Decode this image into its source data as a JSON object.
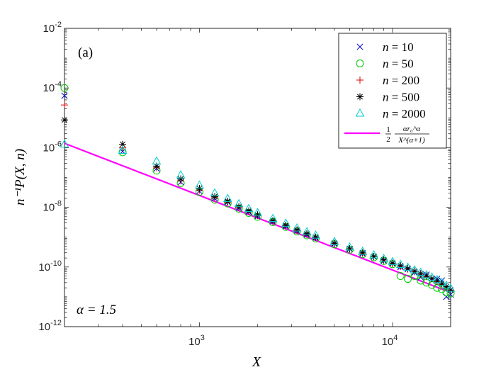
{
  "chart_data": {
    "type": "scatter",
    "panel_label": "(a)",
    "annotation": "α = 1.5",
    "xlabel": "X",
    "ylabel": "n⁻¹P(X, n)",
    "xscale": "log",
    "yscale": "log",
    "xlim": [
      200,
      20000
    ],
    "ylim": [
      1e-12,
      0.01
    ],
    "x_ticks": [
      {
        "value": 1000,
        "base": "10",
        "exp": "3"
      },
      {
        "value": 10000,
        "base": "10",
        "exp": "4"
      }
    ],
    "y_ticks": [
      {
        "value": 0.01,
        "base": "10",
        "exp": "-2"
      },
      {
        "value": 0.0001,
        "base": "10",
        "exp": "-4"
      },
      {
        "value": 1e-06,
        "base": "10",
        "exp": "-6"
      },
      {
        "value": 1e-08,
        "base": "10",
        "exp": "-8"
      },
      {
        "value": 1e-10,
        "base": "10",
        "exp": "-10"
      },
      {
        "value": 1e-12,
        "base": "10",
        "exp": "-12"
      }
    ],
    "series": [
      {
        "name": "n = 10",
        "n": "10",
        "marker": "x",
        "color": "#0000CC",
        "points": [
          [
            200,
            5.5e-05
          ],
          [
            400,
            7.5e-07
          ],
          [
            600,
            2e-07
          ],
          [
            800,
            7e-08
          ],
          [
            1000,
            3.5e-08
          ],
          [
            1200,
            2e-08
          ],
          [
            1400,
            1.5e-08
          ],
          [
            1600,
            9.5e-09
          ],
          [
            1800,
            7e-09
          ],
          [
            2000,
            5e-09
          ],
          [
            2400,
            3.3e-09
          ],
          [
            2800,
            2.3e-09
          ],
          [
            3200,
            1.6e-09
          ],
          [
            3600,
            1.2e-09
          ],
          [
            4000,
            9.5e-10
          ],
          [
            5000,
            6e-10
          ],
          [
            6000,
            4e-10
          ],
          [
            7000,
            2.8e-10
          ],
          [
            8000,
            2.2e-10
          ],
          [
            9000,
            1.6e-10
          ],
          [
            10000,
            1.3e-10
          ],
          [
            11000,
            1e-10
          ],
          [
            12000,
            8.5e-11
          ],
          [
            13000,
            6.5e-11
          ],
          [
            14000,
            4.5e-11
          ],
          [
            15000,
            5.5e-11
          ],
          [
            16000,
            3.5e-11
          ],
          [
            17000,
            4e-11
          ],
          [
            18000,
            3.5e-11
          ],
          [
            19000,
            1e-11
          ],
          [
            20000,
            1.2e-11
          ]
        ]
      },
      {
        "name": "n = 50",
        "n": "50",
        "marker": "circle",
        "color": "#00CC00",
        "points": [
          [
            200,
            0.0001
          ],
          [
            400,
            7e-07
          ],
          [
            600,
            1.7e-07
          ],
          [
            800,
            6.5e-08
          ],
          [
            1000,
            3.3e-08
          ],
          [
            1200,
            1.8e-08
          ],
          [
            1400,
            1.35e-08
          ],
          [
            1600,
            9e-09
          ],
          [
            1800,
            6.5e-09
          ],
          [
            2000,
            4.8e-09
          ],
          [
            2400,
            3.2e-09
          ],
          [
            2800,
            2.2e-09
          ],
          [
            3200,
            1.55e-09
          ],
          [
            3600,
            1.15e-09
          ],
          [
            4000,
            9e-10
          ],
          [
            5000,
            5.8e-10
          ],
          [
            6000,
            3.8e-10
          ],
          [
            7000,
            2.7e-10
          ],
          [
            8000,
            2.1e-10
          ],
          [
            9000,
            1.6e-10
          ],
          [
            10000,
            1.25e-10
          ],
          [
            11000,
            5e-11
          ],
          [
            12000,
            4e-11
          ],
          [
            13000,
            5e-11
          ],
          [
            14000,
            3.5e-11
          ],
          [
            15000,
            3e-11
          ],
          [
            16000,
            2.5e-11
          ],
          [
            17000,
            2e-11
          ],
          [
            18000,
            1.8e-11
          ],
          [
            19000,
            1.4e-11
          ],
          [
            20000,
            1.3e-11
          ]
        ]
      },
      {
        "name": "n = 200",
        "n": "200",
        "marker": "plus",
        "color": "#DD0000",
        "points": [
          [
            200,
            2.7e-05
          ],
          [
            400,
            1e-06
          ],
          [
            600,
            2.1e-07
          ],
          [
            800,
            7.8e-08
          ],
          [
            1000,
            3.8e-08
          ],
          [
            1200,
            2.1e-08
          ],
          [
            1400,
            1.5e-08
          ],
          [
            1600,
            1e-08
          ],
          [
            1800,
            7.2e-09
          ],
          [
            2000,
            5.3e-09
          ],
          [
            2400,
            3.4e-09
          ],
          [
            2800,
            2.4e-09
          ],
          [
            3200,
            1.7e-09
          ],
          [
            3600,
            1.25e-09
          ],
          [
            4000,
            9.8e-10
          ],
          [
            5000,
            6.1e-10
          ],
          [
            6000,
            4e-10
          ],
          [
            7000,
            2.9e-10
          ],
          [
            8000,
            2.2e-10
          ],
          [
            9000,
            1.7e-10
          ],
          [
            10000,
            1.3e-10
          ],
          [
            11000,
            1.05e-10
          ],
          [
            12000,
            8.5e-11
          ],
          [
            13000,
            7e-11
          ],
          [
            14000,
            5.8e-11
          ],
          [
            15000,
            4.8e-11
          ],
          [
            16000,
            4e-11
          ],
          [
            17000,
            3.2e-11
          ],
          [
            18000,
            2.6e-11
          ],
          [
            19000,
            2e-11
          ],
          [
            20000,
            1.6e-11
          ]
        ]
      },
      {
        "name": "n = 500",
        "n": "500",
        "marker": "asterisk",
        "color": "#000000",
        "points": [
          [
            200,
            8.5e-06
          ],
          [
            400,
            1.3e-06
          ],
          [
            600,
            2.4e-07
          ],
          [
            800,
            9e-08
          ],
          [
            1000,
            4.3e-08
          ],
          [
            1200,
            2.3e-08
          ],
          [
            1400,
            1.6e-08
          ],
          [
            1600,
            1.05e-08
          ],
          [
            1800,
            7.6e-09
          ],
          [
            2000,
            5.6e-09
          ],
          [
            2400,
            3.6e-09
          ],
          [
            2800,
            2.5e-09
          ],
          [
            3200,
            1.75e-09
          ],
          [
            3600,
            1.3e-09
          ],
          [
            4000,
            1e-09
          ],
          [
            5000,
            6.3e-10
          ],
          [
            6000,
            4.1e-10
          ],
          [
            7000,
            3e-10
          ],
          [
            8000,
            2.25e-10
          ],
          [
            9000,
            1.75e-10
          ],
          [
            10000,
            1.35e-10
          ],
          [
            11000,
            1.1e-10
          ],
          [
            12000,
            9e-11
          ],
          [
            13000,
            7.3e-11
          ],
          [
            14000,
            6e-11
          ],
          [
            15000,
            5e-11
          ],
          [
            16000,
            4.1e-11
          ],
          [
            17000,
            3.4e-11
          ],
          [
            18000,
            2.8e-11
          ],
          [
            19000,
            2.2e-11
          ],
          [
            20000,
            1.7e-11
          ]
        ]
      },
      {
        "name": "n = 2000",
        "n": "2000",
        "marker": "triangle",
        "color": "#00CCCC",
        "points": [
          [
            200,
            1.3e-06
          ],
          [
            400,
            8e-07
          ],
          [
            600,
            3.5e-07
          ],
          [
            800,
            1.2e-07
          ],
          [
            1000,
            5.5e-08
          ],
          [
            1200,
            3e-08
          ],
          [
            1400,
            1.95e-08
          ],
          [
            1600,
            1.3e-08
          ],
          [
            1800,
            9e-09
          ],
          [
            2000,
            6.6e-09
          ],
          [
            2400,
            4.2e-09
          ],
          [
            2800,
            2.9e-09
          ],
          [
            3200,
            2e-09
          ],
          [
            3600,
            1.5e-09
          ],
          [
            4000,
            1.15e-09
          ],
          [
            5000,
            7e-10
          ],
          [
            6000,
            4.6e-10
          ],
          [
            7000,
            3.3e-10
          ],
          [
            8000,
            2.5e-10
          ],
          [
            9000,
            1.9e-10
          ],
          [
            10000,
            1.5e-10
          ],
          [
            11000,
            1.2e-10
          ],
          [
            12000,
            9.7e-11
          ],
          [
            13000,
            7.9e-11
          ],
          [
            14000,
            6.5e-11
          ],
          [
            15000,
            5.4e-11
          ],
          [
            16000,
            4.5e-11
          ],
          [
            17000,
            3.7e-11
          ],
          [
            18000,
            3e-11
          ],
          [
            19000,
            2.4e-11
          ],
          [
            20000,
            1.9e-11
          ]
        ]
      }
    ],
    "theory_line": {
      "name": "½ αr₀^α / X^(α+1)",
      "color": "#FF00FF",
      "x": [
        200,
        20000
      ],
      "y": [
        1.4e-06,
        1.4e-11
      ],
      "label_frac_num": "1",
      "label_frac_den": "2",
      "label_num": "αr₀^α",
      "label_den": "X^(α+1)"
    }
  }
}
